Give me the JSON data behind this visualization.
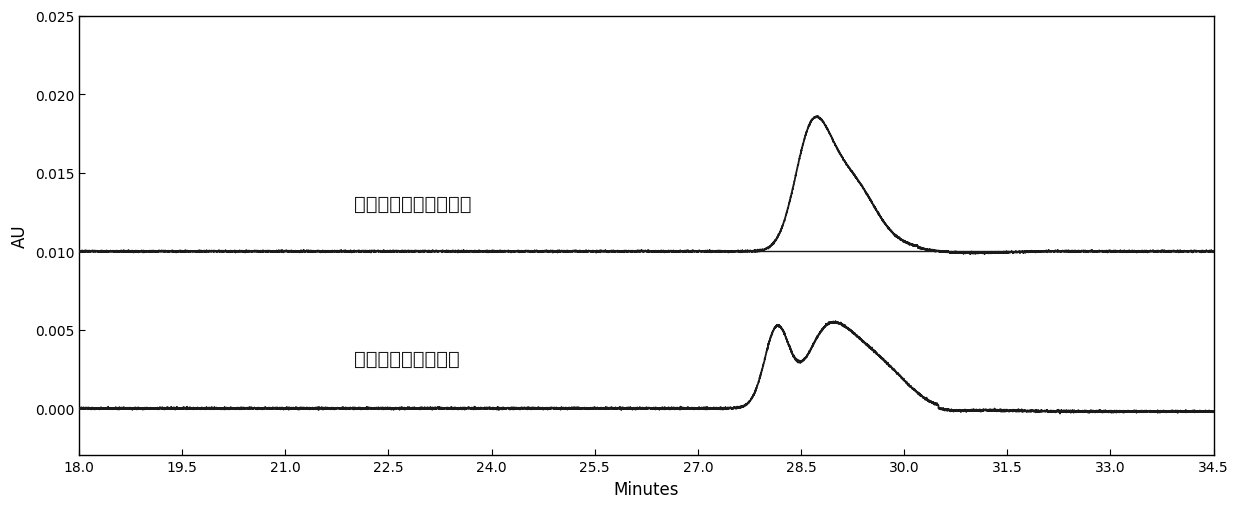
{
  "x_min": 18.0,
  "x_max": 34.5,
  "x_ticks": [
    18.0,
    19.5,
    21.0,
    22.5,
    24.0,
    25.5,
    27.0,
    28.5,
    30.0,
    31.5,
    33.0,
    34.5
  ],
  "y_min": -0.003,
  "y_max": 0.025,
  "y_ticks": [
    0.0,
    0.005,
    0.01,
    0.015,
    0.02,
    0.025
  ],
  "xlabel": "Minutes",
  "ylabel": "AU",
  "label_top": "采用本发明方法的样品",
  "label_bottom": "采用常规方法的样品",
  "top_baseline": 0.01,
  "bottom_baseline": 0.0,
  "line_color": "#1a1a1a",
  "bg_color": "#ffffff",
  "font_size_label": 12,
  "font_size_tick": 10,
  "font_size_annotation": 14
}
